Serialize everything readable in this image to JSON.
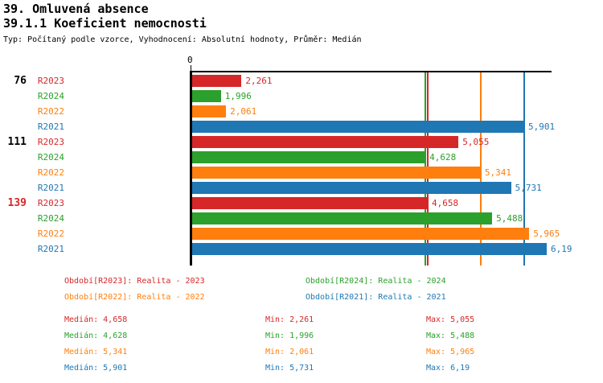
{
  "header": {
    "title1": "39. Omluvená absence",
    "title2": "39.1.1 Koeficient nemocnosti",
    "subtitle": "Typ: Počítaný podle vzorce, Vyhodnocení: Absolutní hodnoty, Průměr: Medián"
  },
  "colors": {
    "R2023": "#d62728",
    "R2024": "#2ca02c",
    "R2022": "#ff7f0e",
    "R2021": "#1f77b4",
    "axis": "#000000",
    "highlight_group": "#d62728"
  },
  "chart_data": {
    "type": "bar",
    "orientation": "horizontal",
    "title": "39.1.1 Koeficient nemocnosti",
    "axis_zero_label": "0",
    "grid": false,
    "series_order": [
      "R2023",
      "R2024",
      "R2022",
      "R2021"
    ],
    "groups": [
      {
        "label": "76",
        "label_color": "#000000",
        "bars": [
          {
            "series": "R2023",
            "value": 2.261,
            "value_label": "2,261"
          },
          {
            "series": "R2024",
            "value": 1.996,
            "value_label": "1,996"
          },
          {
            "series": "R2022",
            "value": 2.061,
            "value_label": "2,061"
          },
          {
            "series": "R2021",
            "value": 5.901,
            "value_label": "5,901"
          }
        ]
      },
      {
        "label": "111",
        "label_color": "#000000",
        "bars": [
          {
            "series": "R2023",
            "value": 5.055,
            "value_label": "5,055"
          },
          {
            "series": "R2024",
            "value": 4.628,
            "value_label": "4,628"
          },
          {
            "series": "R2022",
            "value": 5.341,
            "value_label": "5,341"
          },
          {
            "series": "R2021",
            "value": 5.731,
            "value_label": "5,731"
          }
        ]
      },
      {
        "label": "139",
        "label_color": "#d62728",
        "bars": [
          {
            "series": "R2023",
            "value": 4.658,
            "value_label": "4,658"
          },
          {
            "series": "R2024",
            "value": 5.488,
            "value_label": "5,488"
          },
          {
            "series": "R2022",
            "value": 5.965,
            "value_label": "5,965"
          },
          {
            "series": "R2021",
            "value": 6.19,
            "value_label": "6,19"
          }
        ]
      }
    ],
    "median_lines": [
      {
        "series": "R2024",
        "value": 4.628
      },
      {
        "series": "R2023",
        "value": 4.658
      },
      {
        "series": "R2022",
        "value": 5.341
      },
      {
        "series": "R2021",
        "value": 5.901
      }
    ]
  },
  "legend": {
    "items": [
      {
        "series": "R2023",
        "label": "Období[R2023]: Realita - 2023"
      },
      {
        "series": "R2024",
        "label": "Období[R2024]: Realita - 2024"
      },
      {
        "series": "R2022",
        "label": "Období[R2022]: Realita - 2022"
      },
      {
        "series": "R2021",
        "label": "Období[R2021]: Realita - 2021"
      }
    ]
  },
  "stats": {
    "rows": [
      {
        "series": "R2023",
        "median": "Medián: 4,658",
        "min": "Min: 2,261",
        "max": "Max: 5,055"
      },
      {
        "series": "R2024",
        "median": "Medián: 4,628",
        "min": "Min: 1,996",
        "max": "Max: 5,488"
      },
      {
        "series": "R2022",
        "median": "Medián: 5,341",
        "min": "Min: 2,061",
        "max": "Max: 5,965"
      },
      {
        "series": "R2021",
        "median": "Medián: 5,901",
        "min": "Min: 5,731",
        "max": "Max: 6,19"
      }
    ]
  }
}
